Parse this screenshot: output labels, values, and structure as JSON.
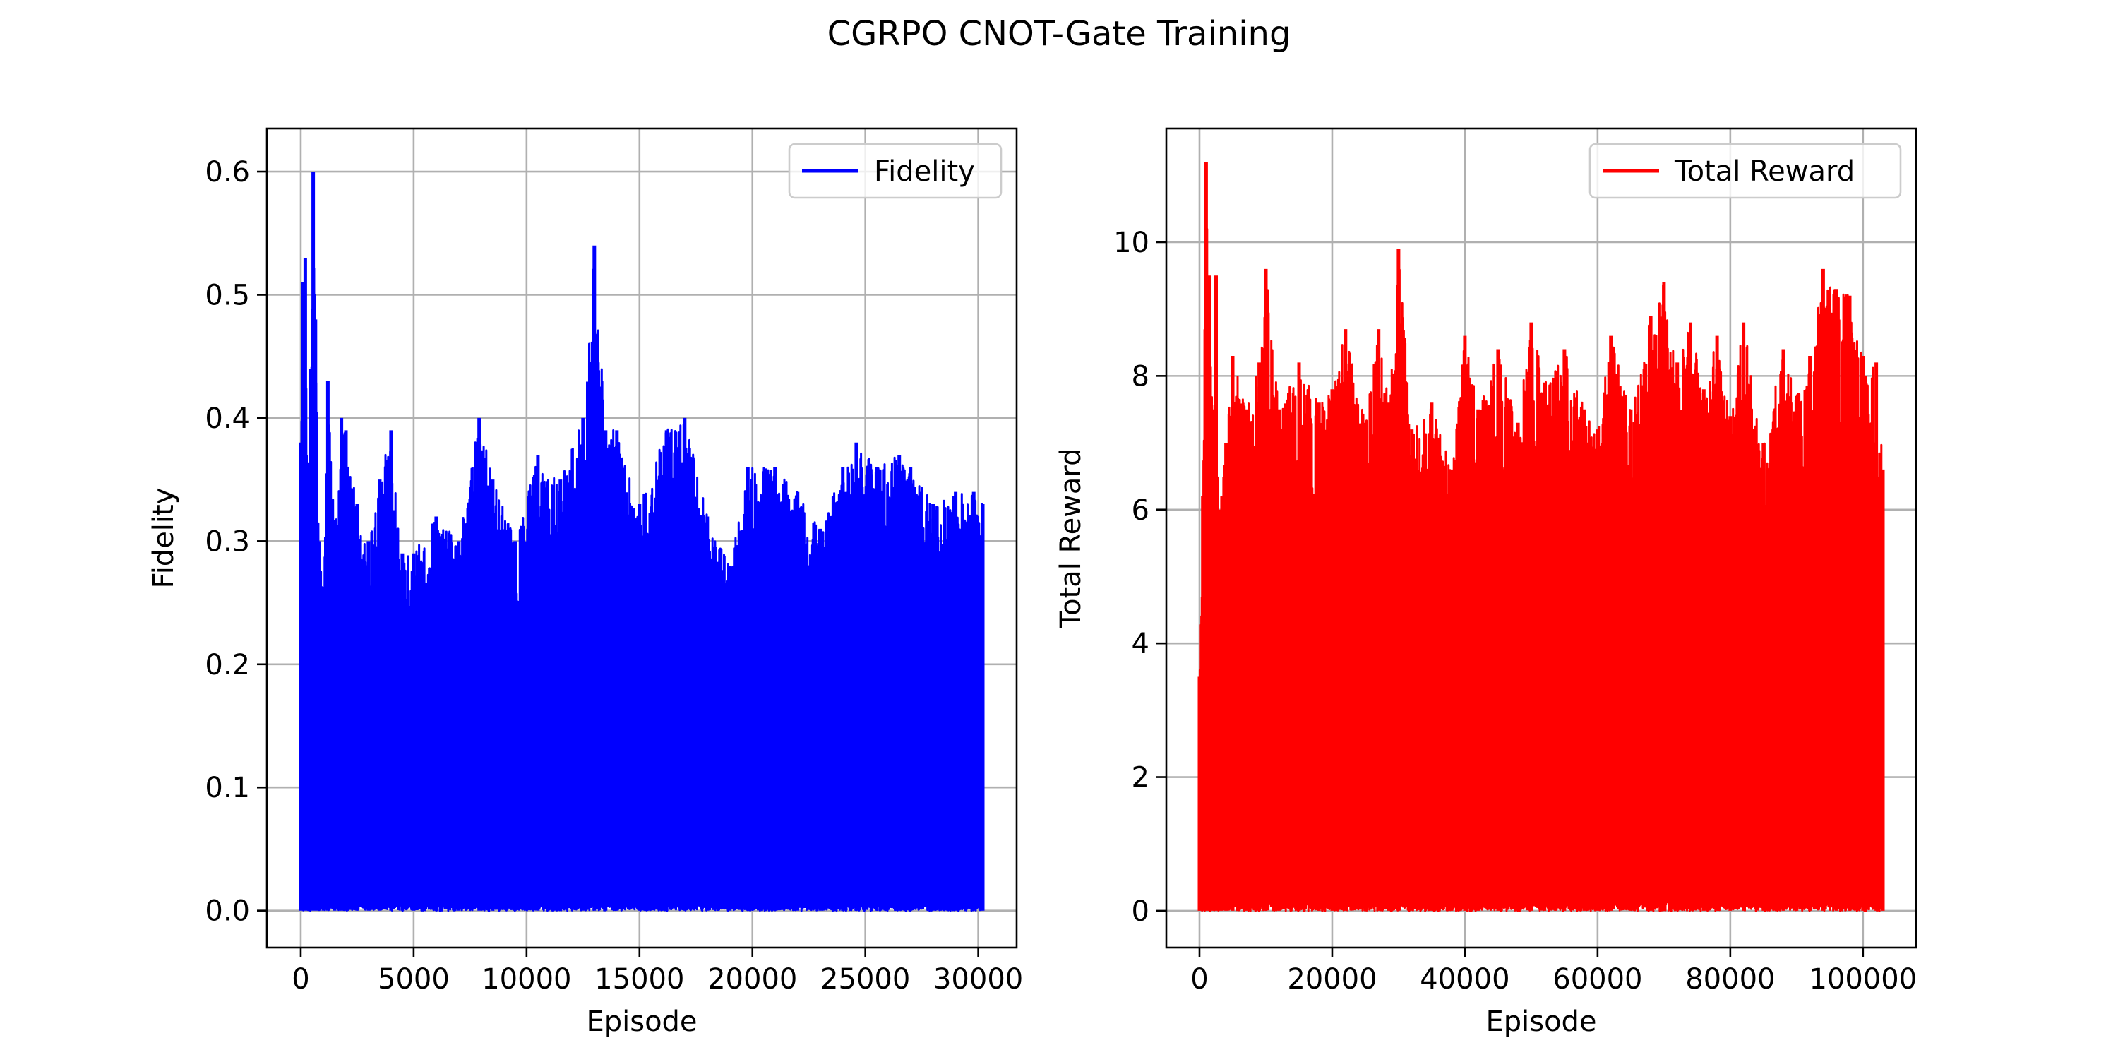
{
  "figure": {
    "suptitle": "CGRPO CNOT-Gate Training"
  },
  "chart_data": [
    {
      "type": "line",
      "title": "",
      "xlabel": "Episode",
      "ylabel": "Fidelity",
      "xlim": [
        -1500,
        31700
      ],
      "ylim": [
        -0.03,
        0.635
      ],
      "xticks": [
        0,
        5000,
        10000,
        15000,
        20000,
        25000,
        30000
      ],
      "yticks": [
        0.0,
        0.1,
        0.2,
        0.3,
        0.4,
        0.5,
        0.6
      ],
      "xtick_labels": [
        "0",
        "5000",
        "10000",
        "15000",
        "20000",
        "25000",
        "30000"
      ],
      "ytick_labels": [
        "0.0",
        "0.1",
        "0.2",
        "0.3",
        "0.4",
        "0.5",
        "0.6"
      ],
      "grid": true,
      "legend_position": "top-right",
      "series": [
        {
          "name": "Fidelity",
          "color": "#0000ff",
          "x_range": [
            0,
            30200
          ],
          "baseline": 0.0,
          "noise_note": "dense episode-level oscillation between ~0 and the envelope",
          "envelope_x": [
            0,
            100,
            200,
            300,
            450,
            550,
            650,
            800,
            1000,
            1200,
            1500,
            1800,
            2000,
            2500,
            3000,
            3500,
            4000,
            4500,
            5000,
            6000,
            7000,
            7900,
            8500,
            9500,
            10500,
            11500,
            12500,
            13000,
            13500,
            14000,
            15000,
            16200,
            17000,
            18000,
            19000,
            19800,
            21000,
            22000,
            23000,
            24000,
            24600,
            25500,
            26500,
            27000,
            28000,
            29000,
            29800,
            30200
          ],
          "envelope_y": [
            0.38,
            0.51,
            0.53,
            0.35,
            0.44,
            0.6,
            0.48,
            0.3,
            0.26,
            0.43,
            0.31,
            0.4,
            0.39,
            0.33,
            0.3,
            0.35,
            0.39,
            0.29,
            0.29,
            0.32,
            0.3,
            0.4,
            0.35,
            0.3,
            0.37,
            0.35,
            0.4,
            0.54,
            0.39,
            0.39,
            0.33,
            0.39,
            0.4,
            0.32,
            0.28,
            0.36,
            0.36,
            0.34,
            0.31,
            0.36,
            0.38,
            0.36,
            0.37,
            0.36,
            0.33,
            0.34,
            0.34,
            0.33
          ]
        }
      ]
    },
    {
      "type": "line",
      "title": "",
      "xlabel": "Episode",
      "ylabel": "Total Reward",
      "xlim": [
        -5000,
        108000
      ],
      "ylim": [
        -0.55,
        11.7
      ],
      "xticks": [
        0,
        20000,
        40000,
        60000,
        80000,
        100000
      ],
      "yticks": [
        0,
        2,
        4,
        6,
        8,
        10
      ],
      "xtick_labels": [
        "0",
        "20000",
        "40000",
        "60000",
        "80000",
        "100000"
      ],
      "ytick_labels": [
        "0",
        "2",
        "4",
        "6",
        "8",
        "10"
      ],
      "grid": true,
      "legend_position": "top-right",
      "series": [
        {
          "name": "Total Reward",
          "color": "#ff0000",
          "x_range": [
            0,
            103000
          ],
          "baseline": 0.0,
          "noise_note": "dense episode-level oscillation between ~0 and the envelope",
          "envelope_x": [
            0,
            500,
            1000,
            1500,
            2000,
            2500,
            3000,
            4000,
            5000,
            7000,
            9000,
            10000,
            12000,
            15000,
            18000,
            20000,
            22000,
            25000,
            27000,
            28500,
            30000,
            32000,
            35000,
            38000,
            40000,
            42000,
            45000,
            48000,
            50000,
            52000,
            55000,
            58000,
            60000,
            62000,
            65000,
            68000,
            70000,
            72000,
            74000,
            76000,
            78000,
            80000,
            82000,
            85000,
            88000,
            90000,
            92000,
            94000,
            96000,
            98000,
            100000,
            102000,
            103000
          ],
          "envelope_y": [
            3.5,
            6.2,
            11.2,
            9.5,
            7.5,
            9.5,
            6.0,
            7.0,
            8.3,
            7.5,
            8.2,
            9.6,
            7.5,
            8.2,
            7.6,
            7.8,
            8.7,
            7.3,
            8.7,
            7.6,
            9.9,
            7.2,
            7.6,
            6.6,
            8.6,
            7.5,
            8.4,
            7.3,
            8.8,
            7.9,
            8.4,
            7.5,
            7.2,
            8.6,
            7.5,
            8.9,
            9.4,
            8.2,
            8.8,
            7.8,
            8.6,
            7.4,
            8.8,
            7.0,
            8.4,
            7.7,
            8.3,
            9.6,
            9.3,
            9.2,
            8.3,
            8.2,
            6.6
          ]
        }
      ]
    }
  ]
}
